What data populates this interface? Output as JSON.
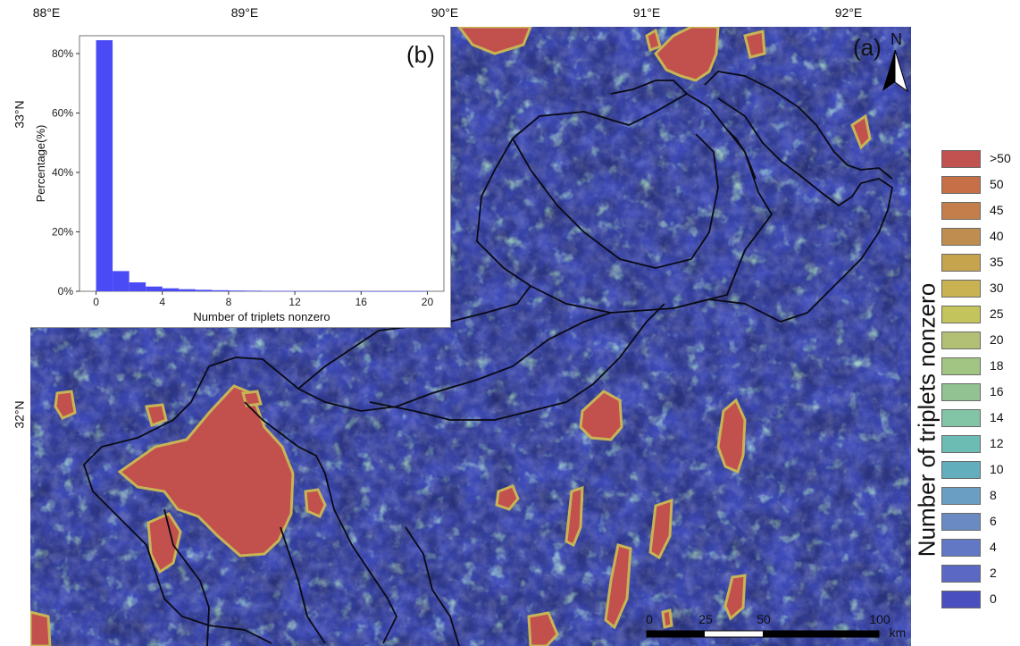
{
  "map": {
    "panel_label": "(a)",
    "north_label": "N",
    "lon_labels": [
      "88°E",
      "89°E",
      "90°E",
      "91°E",
      "92°E"
    ],
    "lat_labels": [
      "33°N",
      "32°N"
    ],
    "scale_bar": {
      "labels": [
        "0",
        "25",
        "50",
        "100"
      ],
      "unit": "km"
    }
  },
  "legend": {
    "title": "Number of triplets nonzero",
    "items": [
      {
        "label": ">50",
        "color": "#c2524f"
      },
      {
        "label": "50",
        "color": "#c77048"
      },
      {
        "label": "45",
        "color": "#c47e4c"
      },
      {
        "label": "40",
        "color": "#c08d51"
      },
      {
        "label": "35",
        "color": "#c6a44e"
      },
      {
        "label": "30",
        "color": "#c9b252"
      },
      {
        "label": "25",
        "color": "#c4c45c"
      },
      {
        "label": "20",
        "color": "#b2c075"
      },
      {
        "label": "18",
        "color": "#a2c584"
      },
      {
        "label": "16",
        "color": "#92c292"
      },
      {
        "label": "14",
        "color": "#81c4a6"
      },
      {
        "label": "12",
        "color": "#6cbcb4"
      },
      {
        "label": "10",
        "color": "#63aebd"
      },
      {
        "label": "8",
        "color": "#6a9ec2"
      },
      {
        "label": "6",
        "color": "#6a8ac4"
      },
      {
        "label": "4",
        "color": "#6378c4"
      },
      {
        "label": "2",
        "color": "#5b68c4"
      },
      {
        "label": "0",
        "color": "#4a4fc0"
      }
    ]
  },
  "chart_data": {
    "type": "bar",
    "panel_label": "(b)",
    "xlabel": "Number of triplets nonzero",
    "ylabel": "Percentage(%)",
    "x_ticks": [
      "0",
      "4",
      "8",
      "12",
      "16",
      "20"
    ],
    "y_ticks": [
      "0%",
      "20%",
      "40%",
      "60%",
      "80%"
    ],
    "xlim": [
      -1,
      21
    ],
    "ylim": [
      0,
      86
    ],
    "bar_color": "#4b4bf5",
    "bin_starts": [
      0,
      1,
      2,
      3,
      4,
      5,
      6,
      7,
      8,
      9,
      10,
      11,
      12,
      13,
      14,
      15,
      16,
      17,
      18,
      19
    ],
    "values": [
      84.5,
      6.8,
      3.0,
      1.6,
      1.0,
      0.7,
      0.5,
      0.35,
      0.25,
      0.2,
      0.15,
      0.12,
      0.1,
      0.08,
      0.07,
      0.06,
      0.05,
      0.04,
      0.03,
      0.03
    ]
  }
}
